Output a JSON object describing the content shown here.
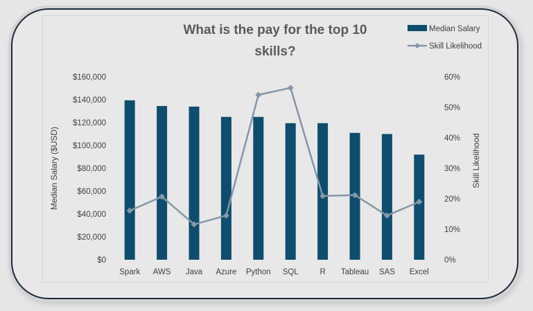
{
  "chart_data": {
    "type": "bar",
    "title_lines": [
      "What is the pay for the top 10",
      "skills?"
    ],
    "categories": [
      "Spark",
      "AWS",
      "Java",
      "Azure",
      "Python",
      "SQL",
      "R",
      "Tableau",
      "SAS",
      "Excel"
    ],
    "series": [
      {
        "name": "Median Salary",
        "type": "bar",
        "axis": "left",
        "values": [
          139500,
          134500,
          134000,
          125000,
          125000,
          119500,
          119500,
          111000,
          110000,
          92000
        ]
      },
      {
        "name": "Skill Likelihood",
        "type": "line",
        "axis": "right",
        "values": [
          0.161,
          0.207,
          0.116,
          0.145,
          0.541,
          0.564,
          0.209,
          0.212,
          0.145,
          0.19
        ]
      }
    ],
    "ylabel_left": "Median Salary ($USD)",
    "ylabel_right": "Skill Likelihood",
    "ylim_left": [
      0,
      160000
    ],
    "ylim_right": [
      0,
      0.6
    ],
    "yticks_left": [
      "$0",
      "$20,000",
      "$40,000",
      "$60,000",
      "$80,000",
      "$100,000",
      "$120,000",
      "$140,000",
      "$160,000"
    ],
    "yticks_right": [
      "0%",
      "10%",
      "20%",
      "30%",
      "40%",
      "50%",
      "60%"
    ],
    "legend_position": "top-right",
    "grid": false,
    "colors": {
      "bar": "#0e4d6e",
      "line": "#8497a8"
    }
  }
}
